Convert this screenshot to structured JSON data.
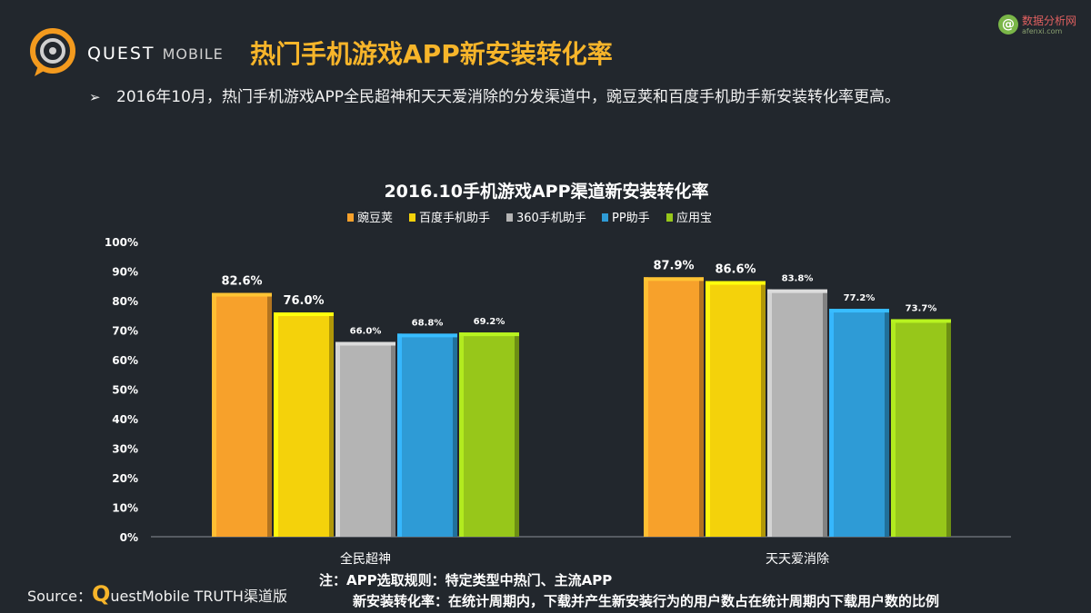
{
  "header": {
    "brand_main": "QUEST",
    "brand_sub": "MOBILE",
    "title": "热门手机游戏APP新安装转化率",
    "watermark_main": "数据分析网",
    "watermark_sub": "afenxi.com",
    "watermark_icon": "@"
  },
  "bullet": {
    "marker": "➢",
    "text": "2016年10月，热门手机游戏APP全民超神和天天爱消除的分发渠道中，豌豆荚和百度手机助手新安装转化率更高。"
  },
  "footer": {
    "source_prefix": "Source：",
    "source_q": "Q",
    "source_rest": "uestMobile TRUTH渠道版",
    "note_line1": "注：APP选取规则：特定类型中热门、主流APP",
    "note_line2": "新安装转化率：在统计周期内，下载并产生新安装行为的用户数占在统计周期内下载用户数的比例"
  },
  "colors": {
    "background": "#22272d",
    "title_accent": "#f7b52a"
  },
  "chart_data": {
    "type": "bar",
    "title": "2016.10手机游戏APP渠道新安装转化率",
    "categories": [
      "全民超神",
      "天天爱消除"
    ],
    "series": [
      {
        "name": "豌豆荚",
        "values": [
          82.6,
          87.9
        ],
        "labels": [
          "82.6%",
          "87.9%"
        ],
        "color": "#f7a12b"
      },
      {
        "name": "百度手机助手",
        "values": [
          76.0,
          86.6
        ],
        "labels": [
          "76.0%",
          "86.6%"
        ],
        "color": "#f4d20b"
      },
      {
        "name": "360手机助手",
        "values": [
          66.0,
          83.8
        ],
        "labels": [
          "66.0%",
          "83.8%"
        ],
        "color": "#b4b4b4"
      },
      {
        "name": "PP助手",
        "values": [
          68.8,
          77.2
        ],
        "labels": [
          "68.8%",
          "77.2%"
        ],
        "color": "#2e9bd6"
      },
      {
        "name": "应用宝",
        "values": [
          69.2,
          73.7
        ],
        "labels": [
          "69.2%",
          "73.7%"
        ],
        "color": "#97c71a"
      }
    ],
    "ylim": [
      0,
      100
    ],
    "yticks": [
      "0%",
      "10%",
      "20%",
      "30%",
      "40%",
      "50%",
      "60%",
      "70%",
      "80%",
      "90%",
      "100%"
    ],
    "grid": false,
    "legend": "top"
  }
}
